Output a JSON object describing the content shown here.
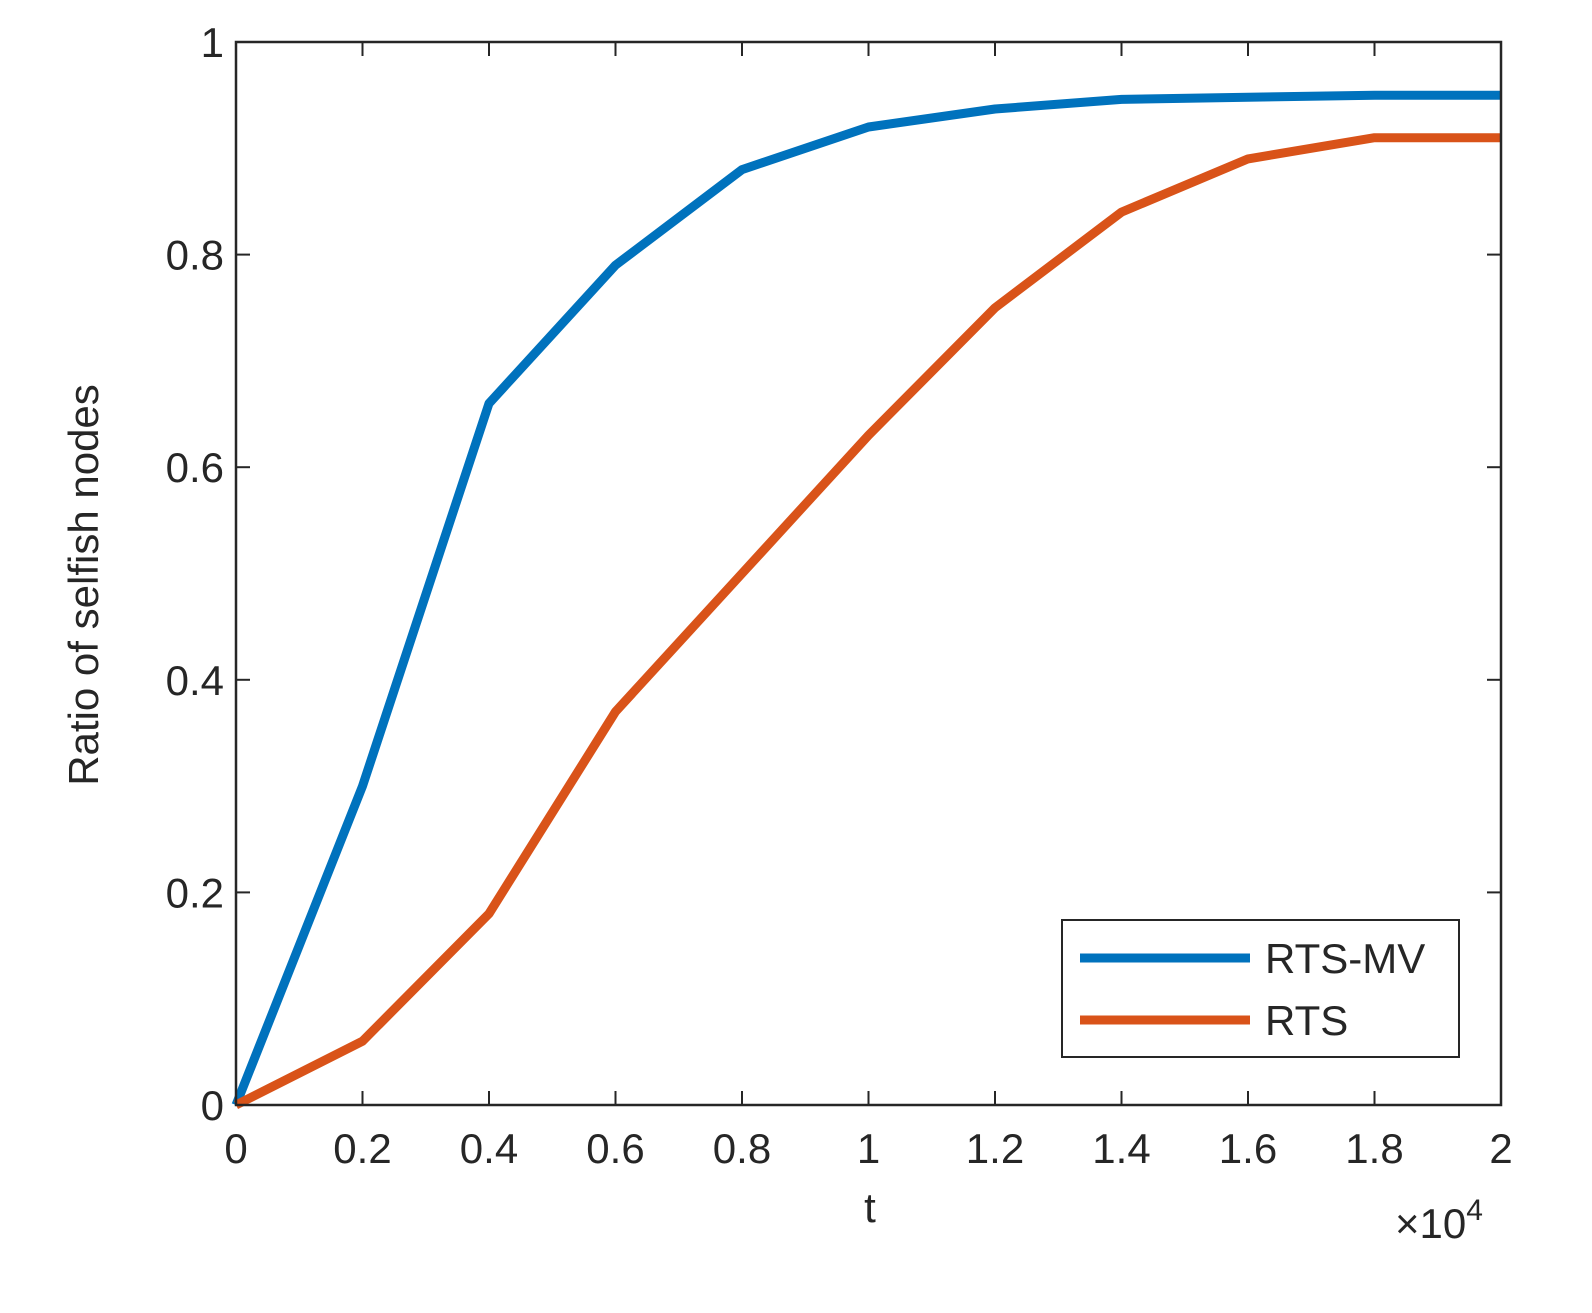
{
  "chart_data": {
    "type": "line",
    "title": "",
    "xlabel": "t",
    "ylabel": "Ratio of selfish nodes",
    "x_exponent_label": "×10",
    "x_exponent_power": "4",
    "x": [
      0,
      0.2,
      0.4,
      0.6,
      0.8,
      1.0,
      1.2,
      1.4,
      1.6,
      1.8,
      2.0
    ],
    "xlim": [
      0,
      2
    ],
    "ylim": [
      0,
      1
    ],
    "xticks": [
      "0",
      "0.2",
      "0.4",
      "0.6",
      "0.8",
      "1",
      "1.2",
      "1.4",
      "1.6",
      "1.8",
      "2"
    ],
    "yticks": [
      "0",
      "0.2",
      "0.4",
      "0.6",
      "0.8",
      "1"
    ],
    "grid": false,
    "legend_position": "bottom-right",
    "series": [
      {
        "name": "RTS-MV",
        "color": "#0072BD",
        "values": [
          0,
          0.3,
          0.66,
          0.79,
          0.88,
          0.92,
          0.937,
          0.946,
          0.948,
          0.95,
          0.95
        ]
      },
      {
        "name": "RTS",
        "color": "#D95319",
        "values": [
          0,
          0.06,
          0.18,
          0.37,
          0.5,
          0.63,
          0.75,
          0.84,
          0.89,
          0.91,
          0.91
        ]
      }
    ]
  }
}
